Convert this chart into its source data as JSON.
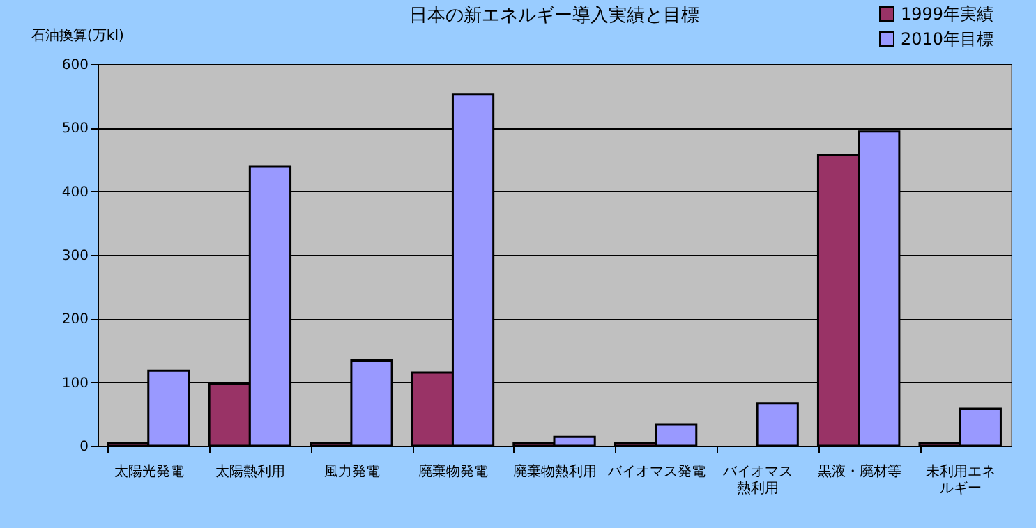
{
  "chart_data": {
    "type": "bar",
    "title": "日本の新エネルギー導入実績と目標",
    "ylabel": "石油換算(万kl)",
    "categories": [
      "太陽光発電",
      "太陽熱利用",
      "風力発電",
      "廃棄物発電",
      "廃棄物熱利用",
      "バイオマス発電",
      "バイオマス熱利用",
      "黒液・廃材等",
      "未利用エネルギー"
    ],
    "series": [
      {
        "name": "1999年実績",
        "color": "#993366",
        "values": [
          5,
          98,
          4,
          115,
          4,
          5,
          null,
          457,
          4
        ]
      },
      {
        "name": "2010年目標",
        "color": "#9999ff",
        "values": [
          118,
          439,
          134,
          552,
          14,
          34,
          67,
          494,
          58
        ]
      }
    ],
    "ylim": [
      0,
      600
    ],
    "yticks": [
      0,
      100,
      200,
      300,
      400,
      500,
      600
    ],
    "grid": "y",
    "legend": "top right"
  }
}
